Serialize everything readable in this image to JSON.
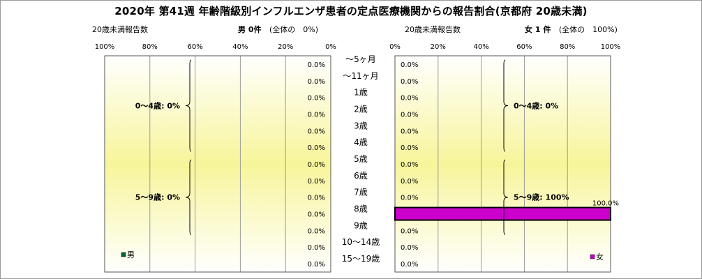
{
  "chart_data": {
    "type": "bar",
    "orientation": "horizontal-pyramid",
    "title": "2020年 第41週 年齢階級別インフルエンザ患者の定点医療機関からの報告割合(京都府 20歳未満)",
    "categories": [
      "〜5ヶ月",
      "〜11ヶ月",
      "1歳",
      "2歳",
      "3歳",
      "4歳",
      "5歳",
      "6歳",
      "7歳",
      "8歳",
      "9歳",
      "10〜14歳",
      "15〜19歳"
    ],
    "xlim": [
      0,
      100
    ],
    "tick_labels": [
      "0%",
      "20%",
      "40%",
      "60%",
      "80%",
      "100%"
    ],
    "grid": true,
    "series": [
      {
        "name": "男",
        "side": "left",
        "header_label": "20歳未満報告数",
        "count_label": "男 0件",
        "share_label": "(全体の　0%)",
        "color": "#006633",
        "values": [
          0,
          0,
          0,
          0,
          0,
          0,
          0,
          0,
          0,
          0,
          0,
          0,
          0
        ],
        "value_labels": [
          "0.0%",
          "0.0%",
          "0.0%",
          "0.0%",
          "0.0%",
          "0.0%",
          "0.0%",
          "0.0%",
          "0.0%",
          "0.0%",
          "0.0%",
          "0.0%",
          "0.0%"
        ],
        "groups": [
          {
            "label": "0〜4歳: 0%",
            "from": 0,
            "to": 5
          },
          {
            "label": "5〜9歳: 0%",
            "from": 6,
            "to": 10
          }
        ]
      },
      {
        "name": "女",
        "side": "right",
        "header_label": "20歳未満報告数",
        "count_label": "女 1 件",
        "share_label": "(全体の　100%)",
        "color": "#cc00cc",
        "values": [
          0,
          0,
          0,
          0,
          0,
          0,
          0,
          0,
          0,
          100,
          0,
          0,
          0
        ],
        "value_labels": [
          "0.0%",
          "0.0%",
          "0.0%",
          "0.0%",
          "0.0%",
          "0.0%",
          "0.0%",
          "0.0%",
          "0.0%",
          "100.0%",
          "0.0%",
          "0.0%",
          "0.0%"
        ],
        "groups": [
          {
            "label": "0〜4歳: 0%",
            "from": 0,
            "to": 5
          },
          {
            "label": "5〜9歳: 100%",
            "from": 6,
            "to": 10
          }
        ]
      }
    ]
  }
}
